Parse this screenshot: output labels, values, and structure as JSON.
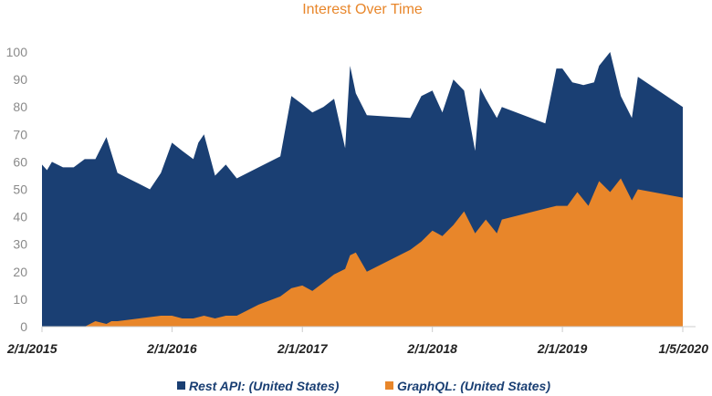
{
  "chart_data": {
    "type": "area",
    "title": "Interest Over Time",
    "xlabel": "",
    "ylabel": "",
    "ylim": [
      0,
      105
    ],
    "yticks": [
      0,
      10,
      20,
      30,
      40,
      50,
      60,
      70,
      80,
      90,
      100
    ],
    "xlim": [
      "2015-02-01",
      "2020-01-05"
    ],
    "xticks": [
      {
        "date": "2015-02-01",
        "label": "2/1/2015"
      },
      {
        "date": "2016-02-01",
        "label": "2/1/2016"
      },
      {
        "date": "2017-02-01",
        "label": "2/1/2017"
      },
      {
        "date": "2018-02-01",
        "label": "2/1/2018"
      },
      {
        "date": "2019-02-01",
        "label": "2/1/2019"
      },
      {
        "date": "2020-01-05",
        "label": "1/5/2020"
      }
    ],
    "grid": false,
    "legend_position": "bottom",
    "colors": {
      "title": "#e8862a",
      "rest": "#1a3f73",
      "graphql": "#e8862a",
      "axis": "#cccccc"
    },
    "series": [
      {
        "name": "Rest API: (United States)",
        "points": [
          [
            "2015-02-01",
            59
          ],
          [
            "2015-02-15",
            57
          ],
          [
            "2015-03-01",
            60
          ],
          [
            "2015-04-01",
            58
          ],
          [
            "2015-05-01",
            58
          ],
          [
            "2015-06-01",
            61
          ],
          [
            "2015-07-01",
            61
          ],
          [
            "2015-08-01",
            69
          ],
          [
            "2015-09-01",
            56
          ],
          [
            "2015-10-01",
            54
          ],
          [
            "2015-11-01",
            52
          ],
          [
            "2015-12-01",
            50
          ],
          [
            "2016-01-01",
            56
          ],
          [
            "2016-02-01",
            67
          ],
          [
            "2016-03-01",
            64
          ],
          [
            "2016-04-01",
            61
          ],
          [
            "2016-04-15",
            67
          ],
          [
            "2016-05-01",
            70
          ],
          [
            "2016-06-01",
            55
          ],
          [
            "2016-07-01",
            59
          ],
          [
            "2016-08-01",
            54
          ],
          [
            "2016-10-01",
            58
          ],
          [
            "2016-12-01",
            62
          ],
          [
            "2017-01-01",
            84
          ],
          [
            "2017-02-01",
            81
          ],
          [
            "2017-03-01",
            78
          ],
          [
            "2017-04-01",
            80
          ],
          [
            "2017-05-01",
            83
          ],
          [
            "2017-06-01",
            65
          ],
          [
            "2017-06-15",
            95
          ],
          [
            "2017-07-01",
            85
          ],
          [
            "2017-08-01",
            77
          ],
          [
            "2017-12-01",
            76
          ],
          [
            "2018-01-01",
            84
          ],
          [
            "2018-02-01",
            86
          ],
          [
            "2018-03-01",
            78
          ],
          [
            "2018-04-01",
            90
          ],
          [
            "2018-05-01",
            86
          ],
          [
            "2018-06-01",
            64
          ],
          [
            "2018-06-15",
            87
          ],
          [
            "2018-07-01",
            83
          ],
          [
            "2018-08-01",
            76
          ],
          [
            "2018-08-15",
            80
          ],
          [
            "2018-12-15",
            74
          ],
          [
            "2019-01-15",
            94
          ],
          [
            "2019-02-01",
            94
          ],
          [
            "2019-03-01",
            89
          ],
          [
            "2019-04-01",
            88
          ],
          [
            "2019-05-01",
            89
          ],
          [
            "2019-05-15",
            95
          ],
          [
            "2019-06-15",
            100
          ],
          [
            "2019-07-15",
            84
          ],
          [
            "2019-08-15",
            76
          ],
          [
            "2019-09-01",
            91
          ],
          [
            "2020-01-05",
            80
          ]
        ]
      },
      {
        "name": "GraphQL: (United States)",
        "points": [
          [
            "2015-02-01",
            0
          ],
          [
            "2015-06-01",
            0
          ],
          [
            "2015-07-01",
            2
          ],
          [
            "2015-08-01",
            1
          ],
          [
            "2015-08-15",
            2
          ],
          [
            "2015-09-01",
            2
          ],
          [
            "2016-01-01",
            4
          ],
          [
            "2016-02-01",
            4
          ],
          [
            "2016-03-01",
            3
          ],
          [
            "2016-04-01",
            3
          ],
          [
            "2016-05-01",
            4
          ],
          [
            "2016-06-01",
            3
          ],
          [
            "2016-07-01",
            4
          ],
          [
            "2016-08-01",
            4
          ],
          [
            "2016-09-01",
            6
          ],
          [
            "2016-10-01",
            8
          ],
          [
            "2016-12-01",
            11
          ],
          [
            "2017-01-01",
            14
          ],
          [
            "2017-02-01",
            15
          ],
          [
            "2017-03-01",
            13
          ],
          [
            "2017-04-01",
            16
          ],
          [
            "2017-05-01",
            19
          ],
          [
            "2017-06-01",
            21
          ],
          [
            "2017-06-15",
            26
          ],
          [
            "2017-07-01",
            27
          ],
          [
            "2017-08-01",
            20
          ],
          [
            "2017-10-01",
            24
          ],
          [
            "2017-12-01",
            28
          ],
          [
            "2018-01-01",
            31
          ],
          [
            "2018-02-01",
            35
          ],
          [
            "2018-03-01",
            33
          ],
          [
            "2018-04-01",
            37
          ],
          [
            "2018-05-01",
            42
          ],
          [
            "2018-06-01",
            34
          ],
          [
            "2018-07-01",
            39
          ],
          [
            "2018-08-01",
            34
          ],
          [
            "2018-08-15",
            39
          ],
          [
            "2018-12-15",
            43
          ],
          [
            "2019-01-15",
            44
          ],
          [
            "2019-02-15",
            44
          ],
          [
            "2019-03-15",
            49
          ],
          [
            "2019-04-15",
            44
          ],
          [
            "2019-05-15",
            53
          ],
          [
            "2019-06-15",
            49
          ],
          [
            "2019-07-15",
            54
          ],
          [
            "2019-08-15",
            46
          ],
          [
            "2019-09-01",
            50
          ],
          [
            "2020-01-05",
            47
          ]
        ]
      }
    ]
  }
}
